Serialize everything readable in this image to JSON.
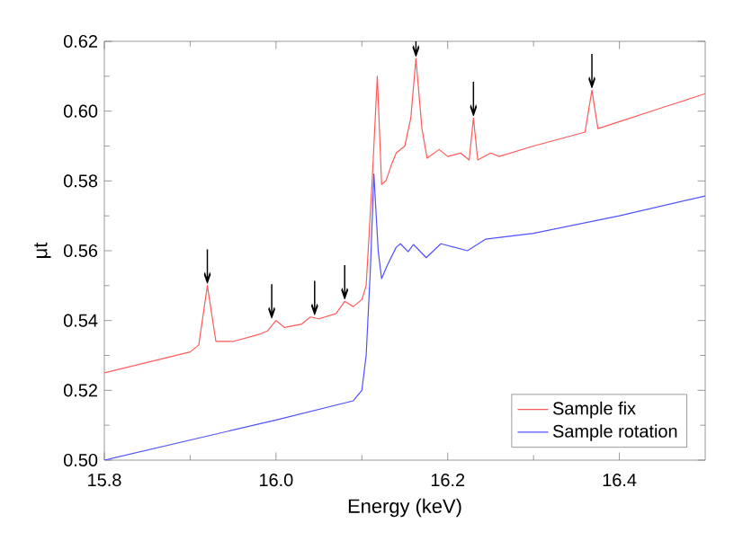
{
  "chart_data": {
    "type": "line",
    "xlabel": "Energy (keV)",
    "ylabel": "μt",
    "xlim": [
      15.8,
      16.5
    ],
    "xticks": [
      15.8,
      {
        "value": 16.0,
        "label": "16.0"
      },
      16.2,
      16.4
    ],
    "ylim": [
      0.5,
      0.62
    ],
    "yticks": [
      {
        "value": 0.5,
        "label": "0.50"
      },
      0.52,
      0.54,
      0.56,
      0.58,
      {
        "value": 0.6,
        "label": "0.60"
      },
      0.62
    ],
    "legend": "bottom right",
    "grid": false,
    "marker": "none",
    "line_style": "solid",
    "series": [
      {
        "name": "Sample fix",
        "color": "#ff5a5a",
        "x": [
          15.8,
          15.9,
          15.91,
          15.92,
          15.93,
          15.95,
          15.98,
          15.99,
          16.0,
          16.01,
          16.03,
          16.04,
          16.05,
          16.07,
          16.08,
          16.09,
          16.1,
          16.105,
          16.112,
          16.118,
          16.123,
          16.128,
          16.135,
          16.14,
          16.15,
          16.157,
          16.163,
          16.17,
          16.176,
          16.19,
          16.2,
          16.215,
          16.225,
          16.23,
          16.235,
          16.25,
          16.26,
          16.3,
          16.36,
          16.368,
          16.375,
          16.4,
          16.45,
          16.5
        ],
        "values": [
          0.525,
          0.531,
          0.533,
          0.55,
          0.534,
          0.534,
          0.536,
          0.537,
          0.54,
          0.538,
          0.539,
          0.541,
          0.5405,
          0.542,
          0.5455,
          0.544,
          0.546,
          0.55,
          0.58,
          0.61,
          0.579,
          0.58,
          0.585,
          0.588,
          0.59,
          0.598,
          0.615,
          0.595,
          0.5865,
          0.589,
          0.587,
          0.588,
          0.586,
          0.598,
          0.586,
          0.588,
          0.587,
          0.59,
          0.594,
          0.606,
          0.595,
          0.597,
          0.601,
          0.605
        ]
      },
      {
        "name": "Sample rotation",
        "color": "#5050ff",
        "x": [
          15.8,
          16.0,
          16.09,
          16.1,
          16.105,
          16.11,
          16.114,
          16.119,
          16.123,
          16.13,
          16.14,
          16.145,
          16.154,
          16.16,
          16.175,
          16.192,
          16.223,
          16.244,
          16.3,
          16.4,
          16.5
        ],
        "values": [
          0.5,
          0.5115,
          0.517,
          0.52,
          0.53,
          0.555,
          0.582,
          0.56,
          0.552,
          0.556,
          0.561,
          0.562,
          0.5597,
          0.5618,
          0.558,
          0.562,
          0.56,
          0.5633,
          0.565,
          0.57,
          0.5757
        ]
      }
    ],
    "annotations": [
      {
        "text": "↓",
        "x": 15.92,
        "y": 0.55
      },
      {
        "text": "↓",
        "x": 15.995,
        "y": 0.54
      },
      {
        "text": "↓",
        "x": 16.045,
        "y": 0.541
      },
      {
        "text": "↓",
        "x": 16.08,
        "y": 0.5455
      },
      {
        "text": "↓",
        "x": 16.163,
        "y": 0.615
      },
      {
        "text": "↓",
        "x": 16.23,
        "y": 0.598
      },
      {
        "text": "↓",
        "x": 16.368,
        "y": 0.606
      }
    ]
  }
}
